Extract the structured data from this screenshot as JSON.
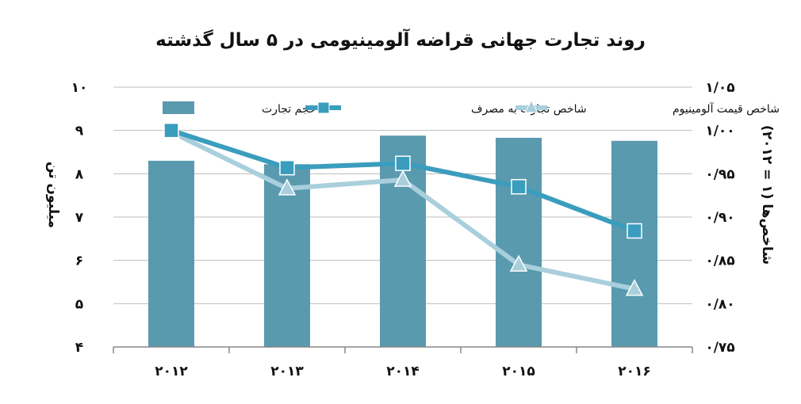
{
  "chart_data": {
    "type": "bar",
    "title": "روند تجارت جهانی قراضه آلومینیومی در ۵ سال گذشته",
    "categories": [
      "۲۰۱۲",
      "۲۰۱۳",
      "۲۰۱۴",
      "۲۰۱۵",
      "۲۰۱۶"
    ],
    "ylabel_left": "میلیون تن",
    "ylabel_right": "شاخص‌ها (۱ = ۲۰۱۲)",
    "ylim_left": [
      4,
      10
    ],
    "ylim_right": [
      0.75,
      1.05
    ],
    "left_ticks": [
      {
        "value": 4,
        "label": "۴"
      },
      {
        "value": 5,
        "label": "۵"
      },
      {
        "value": 6,
        "label": "۶"
      },
      {
        "value": 7,
        "label": "۷"
      },
      {
        "value": 8,
        "label": "۸"
      },
      {
        "value": 9,
        "label": "۹"
      },
      {
        "value": 10,
        "label": "۱۰"
      }
    ],
    "right_ticks": [
      {
        "value": 0.75,
        "label": "۰/۷۵"
      },
      {
        "value": 0.8,
        "label": "۰/۸۰"
      },
      {
        "value": 0.85,
        "label": "۰/۸۵"
      },
      {
        "value": 0.9,
        "label": "۰/۹۰"
      },
      {
        "value": 0.95,
        "label": "۰/۹۵"
      },
      {
        "value": 1.0,
        "label": "۱/۰۰"
      },
      {
        "value": 1.05,
        "label": "۱/۰۵"
      }
    ],
    "series": [
      {
        "name": "حجم تجارت",
        "kind": "bar",
        "axis": "left",
        "color": "#5a9aae",
        "values": [
          8.3,
          8.22,
          8.88,
          8.83,
          8.76
        ]
      },
      {
        "name": "شاخص تجارت به مصرف",
        "kind": "line",
        "axis": "right",
        "marker": "square",
        "color": "#3a9dbd",
        "values": [
          1.0,
          0.957,
          0.962,
          0.935,
          0.884
        ]
      },
      {
        "name": "شاخص قیمت آلومینیوم",
        "kind": "line",
        "axis": "right",
        "marker": "triangle",
        "color": "#a9cfdc",
        "values": [
          0.998,
          0.933,
          0.943,
          0.845,
          0.817
        ]
      }
    ],
    "grid": true,
    "legend_position": "top"
  }
}
